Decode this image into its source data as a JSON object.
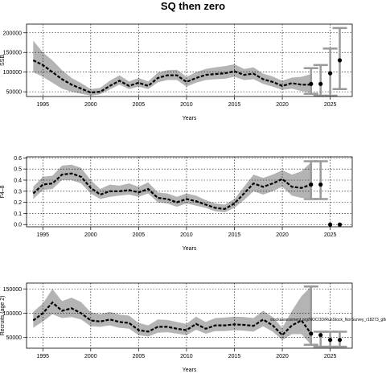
{
  "title": "SQ then zero",
  "chart_data": [
    {
      "type": "line",
      "xlabel": "Years",
      "ylabel": "SSB",
      "xlim": [
        1993.3,
        2027.3
      ],
      "ylim": [
        38000,
        222000
      ],
      "xticks": [
        1995,
        2000,
        2005,
        2010,
        2015,
        2020,
        2025
      ],
      "yticks": [
        50000,
        100000,
        150000,
        200000
      ],
      "ytick_labels": [
        "50000",
        "100000",
        "150000",
        "200000"
      ],
      "grid": true,
      "x": [
        1994,
        1995,
        1996,
        1997,
        1998,
        1999,
        2000,
        2001,
        2002,
        2003,
        2004,
        2005,
        2006,
        2007,
        2008,
        2009,
        2010,
        2011,
        2012,
        2013,
        2014,
        2015,
        2016,
        2017,
        2018,
        2019,
        2020,
        2021,
        2022,
        2023
      ],
      "estimate": [
        130000,
        118000,
        100000,
        82000,
        68000,
        58000,
        48000,
        50000,
        65000,
        78000,
        65000,
        73000,
        65000,
        85000,
        92000,
        92000,
        75000,
        85000,
        93000,
        95000,
        97000,
        102000,
        93000,
        96000,
        82000,
        75000,
        65000,
        72000,
        68000,
        68000
      ],
      "lower": [
        100000,
        88000,
        73000,
        58000,
        50000,
        45000,
        40000,
        44000,
        56000,
        68000,
        57000,
        63000,
        57000,
        74000,
        80000,
        80000,
        63000,
        73000,
        80000,
        82000,
        83000,
        88000,
        80000,
        82000,
        70000,
        63000,
        55000,
        58000,
        52000,
        48000
      ],
      "upper": [
        180000,
        150000,
        130000,
        105000,
        85000,
        72000,
        57000,
        60000,
        78000,
        92000,
        76000,
        85000,
        76000,
        99000,
        105000,
        106000,
        88000,
        100000,
        108000,
        112000,
        115000,
        120000,
        108000,
        112000,
        96000,
        89000,
        78000,
        86000,
        88000,
        95000
      ],
      "projection": {
        "x": [
          2023,
          2024,
          2025,
          2026
        ],
        "value": [
          70000,
          70000,
          97000,
          130000
        ],
        "lower": [
          45000,
          40000,
          40000,
          57000
        ],
        "upper": [
          110000,
          118000,
          160000,
          212000
        ]
      }
    },
    {
      "type": "line",
      "xlabel": "Years",
      "ylabel": "F4–8",
      "xlim": [
        1993.3,
        2027.3
      ],
      "ylim": [
        -0.02,
        0.61
      ],
      "xticks": [
        1995,
        2000,
        2005,
        2010,
        2015,
        2020,
        2025
      ],
      "yticks": [
        0.0,
        0.1,
        0.2,
        0.3,
        0.4,
        0.5,
        0.6
      ],
      "ytick_labels": [
        "0.0",
        "0.1",
        "0.2",
        "0.3",
        "0.4",
        "0.5",
        "0.6"
      ],
      "grid": true,
      "x": [
        1994,
        1995,
        1996,
        1997,
        1998,
        1999,
        2000,
        2001,
        2002,
        2003,
        2004,
        2005,
        2006,
        2007,
        2008,
        2009,
        2010,
        2011,
        2012,
        2013,
        2014,
        2015,
        2016,
        2017,
        2018,
        2019,
        2020,
        2021,
        2022,
        2023
      ],
      "estimate": [
        0.28,
        0.36,
        0.37,
        0.45,
        0.46,
        0.43,
        0.33,
        0.27,
        0.3,
        0.3,
        0.31,
        0.29,
        0.32,
        0.24,
        0.23,
        0.2,
        0.23,
        0.21,
        0.18,
        0.15,
        0.14,
        0.19,
        0.28,
        0.37,
        0.34,
        0.37,
        0.41,
        0.34,
        0.33,
        0.36
      ],
      "lower": [
        0.23,
        0.31,
        0.32,
        0.4,
        0.4,
        0.37,
        0.28,
        0.23,
        0.25,
        0.26,
        0.27,
        0.25,
        0.28,
        0.2,
        0.19,
        0.16,
        0.19,
        0.17,
        0.15,
        0.12,
        0.11,
        0.15,
        0.22,
        0.3,
        0.27,
        0.3,
        0.34,
        0.26,
        0.24,
        0.24
      ],
      "upper": [
        0.34,
        0.43,
        0.44,
        0.53,
        0.54,
        0.51,
        0.4,
        0.32,
        0.36,
        0.35,
        0.37,
        0.34,
        0.38,
        0.29,
        0.28,
        0.25,
        0.28,
        0.26,
        0.22,
        0.19,
        0.18,
        0.23,
        0.34,
        0.45,
        0.42,
        0.45,
        0.49,
        0.45,
        0.48,
        0.56
      ],
      "projection": {
        "x": [
          2023,
          2024,
          2025,
          2026
        ],
        "value": [
          0.36,
          0.36,
          0.0,
          0.0
        ],
        "lower": [
          0.23,
          0.23,
          null,
          null
        ],
        "upper": [
          0.57,
          0.57,
          null,
          null
        ]
      }
    },
    {
      "type": "line",
      "xlabel": "Years",
      "ylabel": "Recruits (age 2)",
      "xlim": [
        1993.3,
        2027.3
      ],
      "ylim": [
        28000,
        162000
      ],
      "xticks": [
        1995,
        2000,
        2005,
        2010,
        2015,
        2020,
        2025
      ],
      "yticks": [
        50000,
        100000,
        150000
      ],
      "ytick_labels": [
        "50000",
        "100000",
        "150000"
      ],
      "grid": true,
      "x": [
        1994,
        1995,
        1996,
        1997,
        1998,
        1999,
        2000,
        2001,
        2002,
        2003,
        2004,
        2005,
        2006,
        2007,
        2008,
        2009,
        2010,
        2011,
        2012,
        2013,
        2014,
        2015,
        2016,
        2017,
        2018,
        2019,
        2020,
        2021,
        2022,
        2023
      ],
      "estimate": [
        85000,
        100000,
        122000,
        105000,
        110000,
        100000,
        85000,
        83000,
        87000,
        82000,
        80000,
        65000,
        62000,
        72000,
        72000,
        68000,
        65000,
        78000,
        68000,
        75000,
        75000,
        77000,
        76000,
        74000,
        87000,
        75000,
        55000,
        75000,
        85000,
        58000
      ],
      "lower": [
        70000,
        83000,
        98000,
        90000,
        92000,
        87000,
        73000,
        72000,
        75000,
        70000,
        68000,
        55000,
        52000,
        60000,
        61000,
        58000,
        55000,
        66000,
        58000,
        63000,
        63000,
        65000,
        64000,
        62000,
        73000,
        62000,
        45000,
        57000,
        57000,
        35000
      ],
      "upper": [
        103000,
        120000,
        150000,
        125000,
        132000,
        123000,
        102000,
        98000,
        103000,
        97000,
        95000,
        80000,
        75000,
        87000,
        86000,
        82000,
        78000,
        93000,
        82000,
        90000,
        91000,
        93000,
        92000,
        90000,
        105000,
        92000,
        70000,
        105000,
        135000,
        155000
      ],
      "projection": {
        "x": [
          2023,
          2024,
          2025,
          2026
        ],
        "value": [
          58000,
          55000,
          45000,
          45000
        ],
        "lower": [
          35000,
          31000,
          31000,
          31000
        ],
        "upper": [
          155000,
          62000,
          62000,
          62000
        ]
      },
      "annotation": "stockassessment.org/NOCOD/RunStock_NorSurvey_r18273_g8c9c8"
    }
  ]
}
